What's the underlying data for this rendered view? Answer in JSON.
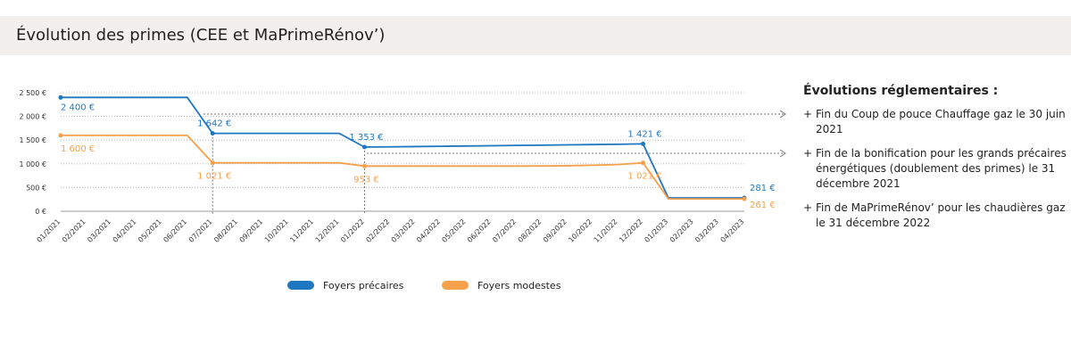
{
  "header": {
    "title": "Évolution des primes (CEE et MaPrimeRénov’)"
  },
  "chart_data": {
    "type": "line",
    "categories": [
      "01/2021",
      "02/2021",
      "03/2021",
      "04/2021",
      "05/2021",
      "06/2021",
      "07/2021",
      "08/2021",
      "09/2021",
      "10/2021",
      "11/2021",
      "12/2021",
      "01/2022",
      "02/2022",
      "03/2022",
      "04/2022",
      "05/2022",
      "06/2022",
      "07/2022",
      "08/2022",
      "09/2022",
      "10/2022",
      "11/2022",
      "12/2022",
      "01/2023",
      "02/2023",
      "03/2023",
      "04/2023"
    ],
    "series": [
      {
        "name": "Foyers précaires",
        "color": "#1f77c0",
        "values": [
          2400,
          2400,
          2400,
          2400,
          2400,
          2400,
          1642,
          1642,
          1642,
          1642,
          1642,
          1642,
          1353,
          1358,
          1364,
          1370,
          1376,
          1382,
          1388,
          1394,
          1400,
          1406,
          1412,
          1421,
          281,
          281,
          281,
          281
        ],
        "value_labels": [
          "2 400 €",
          null,
          null,
          null,
          null,
          null,
          "1 642 €",
          null,
          null,
          null,
          null,
          null,
          "1 353 €",
          null,
          null,
          null,
          null,
          null,
          null,
          null,
          null,
          null,
          null,
          "1 421 €",
          null,
          null,
          null,
          "281 €"
        ]
      },
      {
        "name": "Foyers modestes",
        "color": "#f5a04a",
        "values": [
          1600,
          1600,
          1600,
          1600,
          1600,
          1600,
          1021,
          1021,
          1021,
          1021,
          1021,
          1021,
          953,
          953,
          953,
          953,
          953,
          953,
          953,
          955,
          960,
          970,
          985,
          1021,
          261,
          261,
          261,
          261
        ],
        "value_labels": [
          "1 600 €",
          null,
          null,
          null,
          null,
          null,
          "1 021 €",
          null,
          null,
          null,
          null,
          null,
          "953 €",
          null,
          null,
          null,
          null,
          null,
          null,
          null,
          null,
          null,
          null,
          "1 021 €",
          null,
          null,
          null,
          "261 €"
        ]
      }
    ],
    "ylim": [
      0,
      2500
    ],
    "yticks": [
      {
        "value": 0,
        "label": "0 €"
      },
      {
        "value": 500,
        "label": "500 €"
      },
      {
        "value": 1000,
        "label": "1 000 €"
      },
      {
        "value": 1500,
        "label": "1 500 €"
      },
      {
        "value": 2000,
        "label": "2 000 €"
      },
      {
        "value": 2500,
        "label": "2 500 €"
      }
    ],
    "grid": true
  },
  "notes": {
    "title": "Évolutions réglementaires :",
    "items": [
      "Fin du Coup de pouce Chauffage gaz le 30 juin 2021",
      "Fin de la bonification pour les grands précaires énergétiques (doublement des primes) le 31 décembre 2021",
      "Fin de MaPrimeRénov’ pour les chaudières gaz le 31 décembre 2022"
    ]
  }
}
